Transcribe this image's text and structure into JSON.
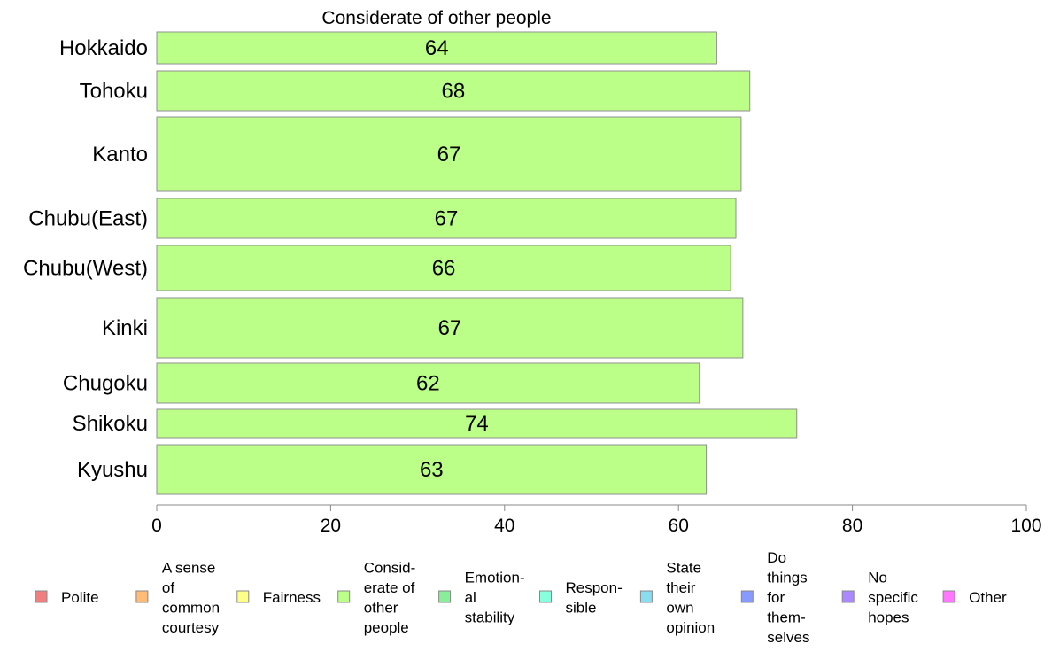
{
  "chart_data": {
    "type": "bar",
    "orientation": "horizontal",
    "title": "Considerate of other people",
    "categories": [
      "Hokkaido",
      "Tohoku",
      "Kanto",
      "Chubu(East)",
      "Chubu(West)",
      "Kinki",
      "Chugoku",
      "Shikoku",
      "Kyushu"
    ],
    "values": [
      64.4,
      68.2,
      67.2,
      66.6,
      66.0,
      67.4,
      62.4,
      73.6,
      63.2
    ],
    "data_labels": [
      "64",
      "68",
      "67",
      "67",
      "66",
      "67",
      "62",
      "74",
      "63"
    ],
    "bar_color": "#bbff88",
    "xlim": [
      0,
      100
    ],
    "xticks": [
      0,
      20,
      40,
      60,
      80,
      100
    ],
    "grid": false,
    "legend_position": "bottom",
    "legend": [
      {
        "label": "Polite",
        "color": "#f08080"
      },
      {
        "label": "A sense of common courtesy",
        "lines": [
          "A sense",
          "of",
          "common",
          "courtesy"
        ],
        "color": "#ffbb77"
      },
      {
        "label": "Fairness",
        "color": "#ffff88"
      },
      {
        "label": "Consid-erate of other people",
        "lines": [
          "Consid-",
          "erate of",
          "other",
          "people"
        ],
        "color": "#bbff88"
      },
      {
        "label": "Emotion-al stability",
        "lines": [
          "Emotion-",
          "al",
          "stability"
        ],
        "color": "#88ee99"
      },
      {
        "label": "Respon-sible",
        "lines": [
          "Respon-",
          "sible"
        ],
        "color": "#88ffdd"
      },
      {
        "label": "State their own opinion",
        "lines": [
          "State",
          "their",
          "own",
          "opinion"
        ],
        "color": "#88ddee"
      },
      {
        "label": "Do things for them-selves",
        "lines": [
          "Do",
          "things",
          "for",
          "them-",
          "selves"
        ],
        "color": "#8899ff"
      },
      {
        "label": "No specific hopes",
        "lines": [
          "No",
          "specific",
          "hopes"
        ],
        "color": "#aa88ff"
      },
      {
        "label": "Other",
        "color": "#ff77ff"
      }
    ]
  }
}
